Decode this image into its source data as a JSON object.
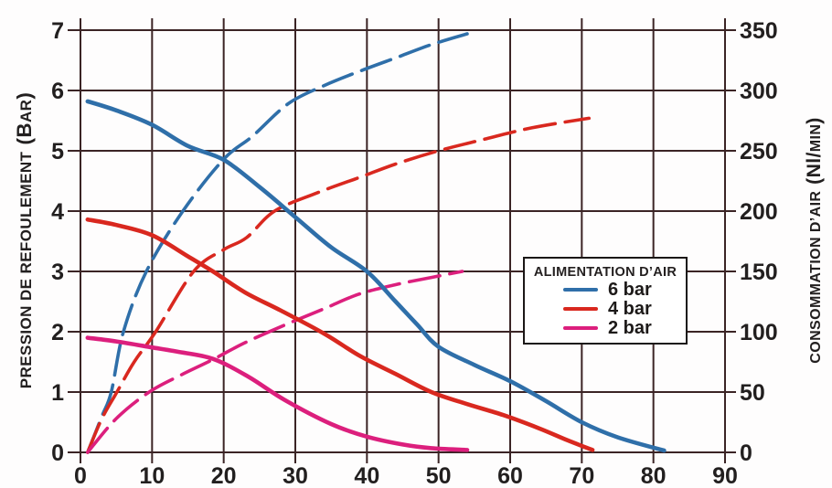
{
  "chart_data": {
    "type": "line",
    "title": "",
    "x_axis": {
      "min": 0,
      "max": 90,
      "ticks": [
        0,
        10,
        20,
        30,
        40,
        50,
        60,
        70,
        80,
        90
      ],
      "grid": true
    },
    "y_left": {
      "title_main": "PRESSION DE REFOULEMENT",
      "unit_prefix": "(B",
      "unit_small": "AR",
      "unit_suffix": ")",
      "min": 0,
      "max": 7,
      "ticks": [
        0,
        1,
        2,
        3,
        4,
        5,
        6,
        7
      ],
      "grid": true
    },
    "y_right": {
      "title_main": "CONSOMMATION D’AIR",
      "unit_prefix": "(Nl/",
      "unit_small": "MIN",
      "unit_suffix": ")",
      "min": 0,
      "max": 350,
      "ticks": [
        0,
        50,
        100,
        150,
        200,
        250,
        300,
        350
      ]
    },
    "legend": {
      "title": "ALIMENTATION D’AIR",
      "position": "middle-right",
      "entries": [
        {
          "label": "6 bar",
          "color": "#2f6fa9"
        },
        {
          "label": "4 bar",
          "color": "#d9281f"
        },
        {
          "label": "2 bar",
          "color": "#dc1f7d"
        }
      ]
    },
    "colors": {
      "grid": "#3b2425",
      "text": "#221f1f",
      "background": "#ffffff"
    },
    "series": [
      {
        "name": "consumption-6bar",
        "legend": "6 bar",
        "axis": "right",
        "style": "dashed",
        "color": "#2f6fa9",
        "points": [
          [
            1,
            0
          ],
          [
            3,
            30
          ],
          [
            4.3,
            50
          ],
          [
            6,
            100
          ],
          [
            9.2,
            150
          ],
          [
            14.3,
            200
          ],
          [
            20,
            243
          ],
          [
            24,
            262
          ],
          [
            29,
            289
          ],
          [
            34,
            304
          ],
          [
            39,
            316
          ],
          [
            44,
            327
          ],
          [
            49,
            338
          ],
          [
            54,
            347
          ]
        ]
      },
      {
        "name": "consumption-4bar",
        "legend": "4 bar",
        "axis": "right",
        "style": "dashed",
        "color": "#d9281f",
        "points": [
          [
            1,
            0
          ],
          [
            3,
            28
          ],
          [
            5.1,
            50
          ],
          [
            7.5,
            75
          ],
          [
            10.5,
            100
          ],
          [
            15.8,
            150
          ],
          [
            20,
            168
          ],
          [
            23.2,
            178
          ],
          [
            27.1,
            200
          ],
          [
            33,
            215
          ],
          [
            39,
            228
          ],
          [
            44,
            239
          ],
          [
            50,
            250
          ],
          [
            56,
            259
          ],
          [
            63,
            269
          ],
          [
            71,
            277
          ]
        ]
      },
      {
        "name": "consumption-2bar",
        "legend": "2 bar",
        "axis": "right",
        "style": "dashed",
        "color": "#dc1f7d",
        "points": [
          [
            1,
            0
          ],
          [
            5,
            28
          ],
          [
            9.6,
            50
          ],
          [
            14,
            64
          ],
          [
            18.5,
            77
          ],
          [
            23,
            91
          ],
          [
            28.7,
            106
          ],
          [
            34,
            119
          ],
          [
            38.8,
            131
          ],
          [
            44,
            139
          ],
          [
            49,
            145
          ],
          [
            53.3,
            150
          ]
        ]
      },
      {
        "name": "pressure-6bar",
        "legend": "6 bar",
        "axis": "left",
        "style": "solid",
        "color": "#2f6fa9",
        "points": [
          [
            1,
            5.82
          ],
          [
            5,
            5.67
          ],
          [
            10,
            5.43
          ],
          [
            15,
            5.08
          ],
          [
            20,
            4.85
          ],
          [
            25,
            4.4
          ],
          [
            30,
            3.9
          ],
          [
            35,
            3.4
          ],
          [
            40,
            3.0
          ],
          [
            44,
            2.5
          ],
          [
            47,
            2.12
          ],
          [
            50,
            1.75
          ],
          [
            55,
            1.45
          ],
          [
            60,
            1.18
          ],
          [
            65,
            0.85
          ],
          [
            70,
            0.5
          ],
          [
            75,
            0.25
          ],
          [
            81.5,
            0.03
          ]
        ]
      },
      {
        "name": "pressure-4bar",
        "legend": "4 bar",
        "axis": "left",
        "style": "solid",
        "color": "#d9281f",
        "points": [
          [
            1,
            3.86
          ],
          [
            5,
            3.77
          ],
          [
            10,
            3.6
          ],
          [
            15,
            3.25
          ],
          [
            18.5,
            3.0
          ],
          [
            23,
            2.65
          ],
          [
            28,
            2.35
          ],
          [
            34,
            1.97
          ],
          [
            39,
            1.6
          ],
          [
            44,
            1.3
          ],
          [
            49,
            1.0
          ],
          [
            54,
            0.8
          ],
          [
            59,
            0.62
          ],
          [
            64,
            0.4
          ],
          [
            68,
            0.2
          ],
          [
            71.5,
            0.04
          ]
        ]
      },
      {
        "name": "pressure-2bar",
        "legend": "2 bar",
        "axis": "left",
        "style": "solid",
        "color": "#dc1f7d",
        "points": [
          [
            1,
            1.9
          ],
          [
            5,
            1.84
          ],
          [
            10,
            1.74
          ],
          [
            13.5,
            1.67
          ],
          [
            18.5,
            1.55
          ],
          [
            23.5,
            1.25
          ],
          [
            28.5,
            0.87
          ],
          [
            35,
            0.47
          ],
          [
            40,
            0.26
          ],
          [
            45,
            0.13
          ],
          [
            49,
            0.07
          ],
          [
            54,
            0.04
          ]
        ]
      }
    ]
  }
}
